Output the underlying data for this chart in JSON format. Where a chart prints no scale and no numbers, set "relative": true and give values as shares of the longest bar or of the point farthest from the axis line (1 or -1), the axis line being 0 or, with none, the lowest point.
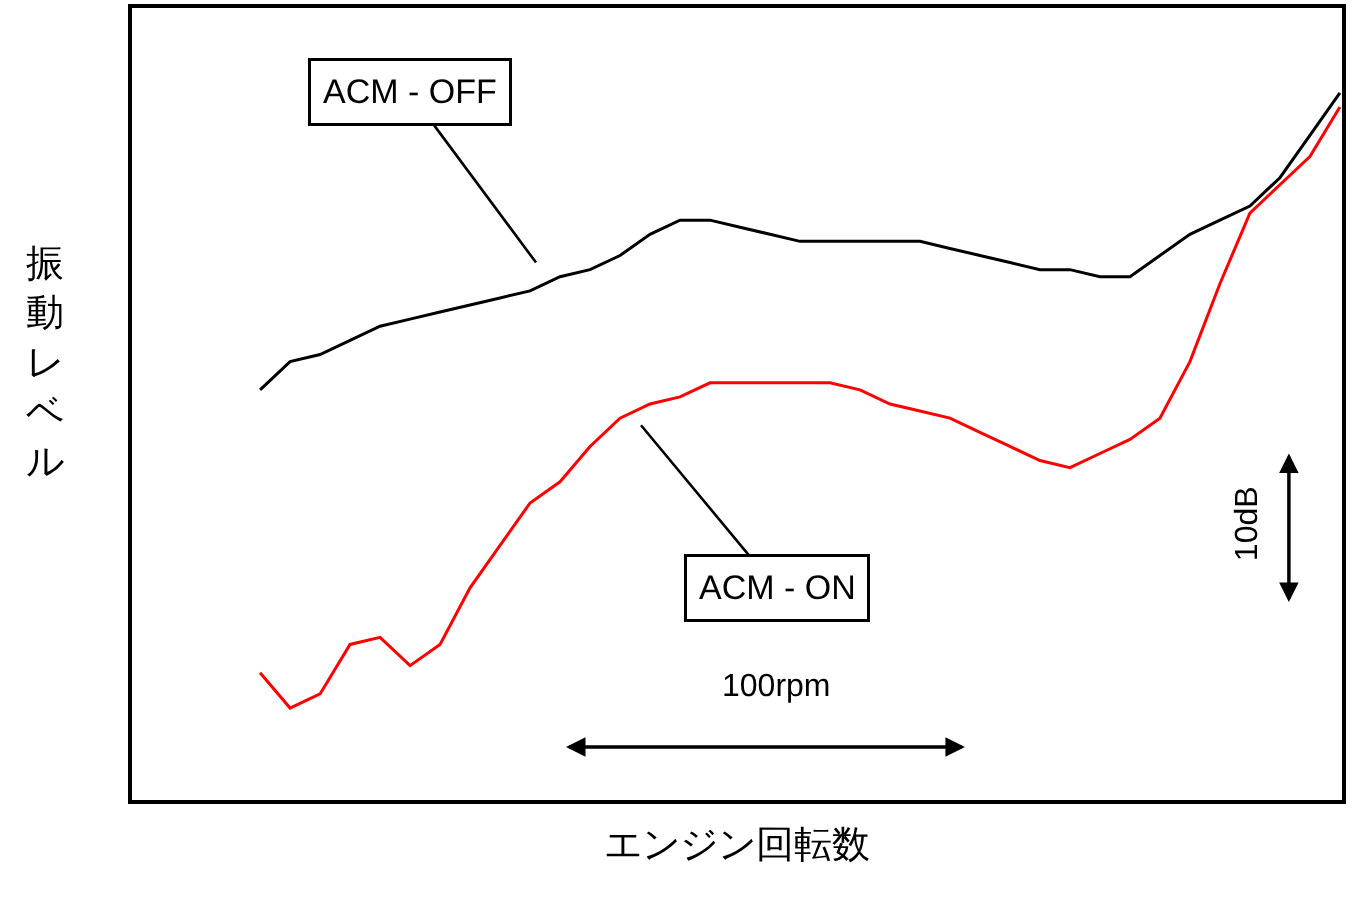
{
  "chart_data": {
    "type": "line",
    "relative": true,
    "xlabel": "エンジン回転数",
    "ylabel": "振動レベル",
    "categories": [
      null,
      null,
      null,
      null,
      null,
      null,
      null,
      null,
      null,
      null,
      null,
      null,
      null,
      null,
      null,
      null,
      null,
      null,
      null,
      null,
      null,
      null,
      null,
      null,
      null,
      null,
      null,
      null,
      null,
      null,
      null,
      null,
      null,
      null,
      null,
      null,
      null
    ],
    "series": [
      {
        "color": "#000000",
        "values": [
          0.58,
          0.62,
          0.63,
          0.65,
          0.67,
          0.68,
          0.69,
          0.7,
          0.71,
          0.72,
          0.74,
          0.75,
          0.77,
          0.8,
          0.82,
          0.82,
          0.81,
          0.8,
          0.79,
          0.79,
          0.79,
          0.79,
          0.79,
          0.78,
          0.77,
          0.76,
          0.75,
          0.75,
          0.74,
          0.74,
          0.77,
          0.8,
          0.82,
          0.84,
          0.88,
          0.94,
          1.0
        ]
      },
      {
        "color": "#ff0000",
        "values": [
          0.18,
          0.13,
          0.15,
          0.22,
          0.23,
          0.19,
          0.22,
          0.3,
          0.36,
          0.42,
          0.45,
          0.5,
          0.54,
          0.56,
          0.57,
          0.59,
          0.59,
          0.59,
          0.59,
          0.59,
          0.58,
          0.56,
          0.55,
          0.54,
          0.52,
          0.5,
          0.48,
          0.47,
          0.49,
          0.51,
          0.54,
          0.62,
          0.73,
          0.83,
          0.87,
          0.91,
          0.98
        ]
      }
    ],
    "annotations": [
      "ACM - OFF",
      "ACM - ON",
      "100rpm",
      "10dB"
    ],
    "marker": "none",
    "line_style": "solid"
  }
}
